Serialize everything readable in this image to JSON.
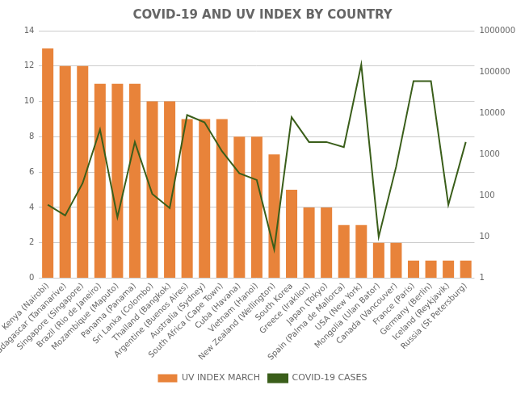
{
  "chart_data": {
    "type": "bar",
    "title": "COVID-19 AND UV INDEX BY COUNTRY",
    "categories": [
      "Kenya (Nairobi)",
      "Madagascar (Tananarive)",
      "Singapore (Singapore)",
      "Brazil (Rio de Janeiro)",
      "Mozambique (Maputo)",
      "Panama (Panama)",
      "Sri Lanka (Colombo)",
      "Thailand (Bangkok)",
      "Argentine (Buenos Aires)",
      "Australia (Sydney)",
      "South Africa (Cape Town)",
      "Cuba (Havana)",
      "Vietnam (Hanoi)",
      "New Zealand (Wellington)",
      "South Korea",
      "Greece (Iraklion)",
      "Japan (Tokyo)",
      "Spain (Palma de Mallorca)",
      "USA (New York)",
      "Mongolia (Ulan Bator)",
      "Canada (Vancouver)",
      "France (Paris)",
      "Germany (Berlin)",
      "Iceland (Reykjavik)",
      "Russia (St Petersburg)"
    ],
    "series": [
      {
        "name": "UV INDEX MARCH",
        "type": "bar",
        "color": "#e8833a",
        "values": [
          13,
          12,
          12,
          11,
          11,
          11,
          10,
          10,
          9,
          9,
          9,
          8,
          8,
          7,
          5,
          4,
          4,
          3,
          3,
          2,
          2,
          1,
          1,
          1,
          1
        ]
      },
      {
        "name": "COVID-19 CASES",
        "type": "line",
        "color": "#3a5e1a",
        "axis": "y2",
        "values": [
          60,
          33,
          200,
          4000,
          30,
          2000,
          110,
          50,
          9000,
          6000,
          1200,
          350,
          240,
          5,
          8000,
          2000,
          2000,
          1500,
          150000,
          10,
          500,
          60000,
          60000,
          60,
          2000
        ]
      }
    ],
    "ylim": [
      0,
      14
    ],
    "yticks": [
      0,
      2,
      4,
      6,
      8,
      10,
      12,
      14
    ],
    "y2lim": [
      1,
      1000000
    ],
    "y2ticks": [
      1,
      10,
      100,
      1000,
      10000,
      100000,
      1000000
    ],
    "log": "y2",
    "grid": true,
    "legend": "bottom"
  }
}
